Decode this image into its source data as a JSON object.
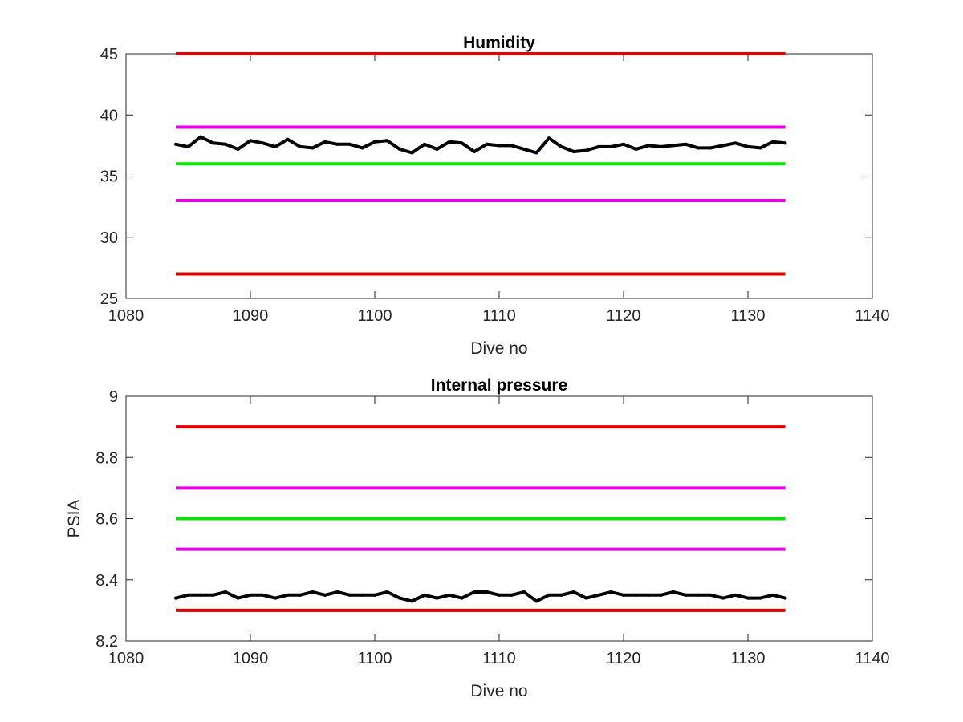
{
  "chart_data": [
    {
      "type": "line",
      "title": "Humidity",
      "xlabel": "Dive no",
      "ylabel": "",
      "xlim": [
        1080,
        1140
      ],
      "ylim": [
        25,
        45
      ],
      "xticks": [
        1080,
        1090,
        1100,
        1110,
        1120,
        1130,
        1140
      ],
      "yticks": [
        25,
        30,
        35,
        40,
        45
      ],
      "xtick_labels": [
        "1080",
        "1090",
        "1100",
        "1110",
        "1120",
        "1130",
        "1140"
      ],
      "ytick_labels": [
        "25",
        "30",
        "35",
        "40",
        "45"
      ],
      "grid": false,
      "legend": "none",
      "reference_lines": [
        {
          "y": 45,
          "x": [
            1084,
            1133
          ],
          "color": "#e00000"
        },
        {
          "y": 39,
          "x": [
            1084,
            1133
          ],
          "color": "#e600e6"
        },
        {
          "y": 36,
          "x": [
            1084,
            1133
          ],
          "color": "#00e600"
        },
        {
          "y": 33,
          "x": [
            1084,
            1133
          ],
          "color": "#e600e6"
        },
        {
          "y": 27,
          "x": [
            1084,
            1133
          ],
          "color": "#e00000"
        }
      ],
      "series": [
        {
          "color": "#000000",
          "x": [
            1084,
            1085,
            1086,
            1087,
            1088,
            1089,
            1090,
            1091,
            1092,
            1093,
            1094,
            1095,
            1096,
            1097,
            1098,
            1099,
            1100,
            1101,
            1102,
            1103,
            1104,
            1105,
            1106,
            1107,
            1108,
            1109,
            1110,
            1111,
            1112,
            1113,
            1114,
            1115,
            1116,
            1117,
            1118,
            1119,
            1120,
            1121,
            1122,
            1123,
            1124,
            1125,
            1126,
            1127,
            1128,
            1129,
            1130,
            1131,
            1132,
            1133
          ],
          "values": [
            37.6,
            37.4,
            38.2,
            37.7,
            37.6,
            37.2,
            37.9,
            37.7,
            37.4,
            38.0,
            37.4,
            37.3,
            37.8,
            37.6,
            37.6,
            37.3,
            37.8,
            37.9,
            37.2,
            36.9,
            37.6,
            37.2,
            37.8,
            37.7,
            37.0,
            37.6,
            37.5,
            37.5,
            37.2,
            36.9,
            38.1,
            37.4,
            37.0,
            37.1,
            37.4,
            37.4,
            37.6,
            37.2,
            37.5,
            37.4,
            37.5,
            37.6,
            37.3,
            37.3,
            37.5,
            37.7,
            37.4,
            37.3,
            37.8,
            37.7
          ]
        }
      ]
    },
    {
      "type": "line",
      "title": "Internal pressure",
      "xlabel": "Dive no",
      "ylabel": "PSIA",
      "xlim": [
        1080,
        1140
      ],
      "ylim": [
        8.2,
        9.0
      ],
      "xticks": [
        1080,
        1090,
        1100,
        1110,
        1120,
        1130,
        1140
      ],
      "yticks": [
        8.2,
        8.4,
        8.6,
        8.8,
        9.0
      ],
      "xtick_labels": [
        "1080",
        "1090",
        "1100",
        "1110",
        "1120",
        "1130",
        "1140"
      ],
      "ytick_labels": [
        "8.2",
        "8.4",
        "8.6",
        "8.8",
        "9"
      ],
      "grid": false,
      "legend": "none",
      "reference_lines": [
        {
          "y": 8.9,
          "x": [
            1084,
            1133
          ],
          "color": "#e00000"
        },
        {
          "y": 8.7,
          "x": [
            1084,
            1133
          ],
          "color": "#e600e6"
        },
        {
          "y": 8.6,
          "x": [
            1084,
            1133
          ],
          "color": "#00e600"
        },
        {
          "y": 8.5,
          "x": [
            1084,
            1133
          ],
          "color": "#e600e6"
        },
        {
          "y": 8.3,
          "x": [
            1084,
            1133
          ],
          "color": "#e00000"
        }
      ],
      "series": [
        {
          "color": "#000000",
          "x": [
            1084,
            1085,
            1086,
            1087,
            1088,
            1089,
            1090,
            1091,
            1092,
            1093,
            1094,
            1095,
            1096,
            1097,
            1098,
            1099,
            1100,
            1101,
            1102,
            1103,
            1104,
            1105,
            1106,
            1107,
            1108,
            1109,
            1110,
            1111,
            1112,
            1113,
            1114,
            1115,
            1116,
            1117,
            1118,
            1119,
            1120,
            1121,
            1122,
            1123,
            1124,
            1125,
            1126,
            1127,
            1128,
            1129,
            1130,
            1131,
            1132,
            1133
          ],
          "values": [
            8.34,
            8.35,
            8.35,
            8.35,
            8.36,
            8.34,
            8.35,
            8.35,
            8.34,
            8.35,
            8.35,
            8.36,
            8.35,
            8.36,
            8.35,
            8.35,
            8.35,
            8.36,
            8.34,
            8.33,
            8.35,
            8.34,
            8.35,
            8.34,
            8.36,
            8.36,
            8.35,
            8.35,
            8.36,
            8.33,
            8.35,
            8.35,
            8.36,
            8.34,
            8.35,
            8.36,
            8.35,
            8.35,
            8.35,
            8.35,
            8.36,
            8.35,
            8.35,
            8.35,
            8.34,
            8.35,
            8.34,
            8.34,
            8.35,
            8.34
          ]
        }
      ]
    }
  ]
}
